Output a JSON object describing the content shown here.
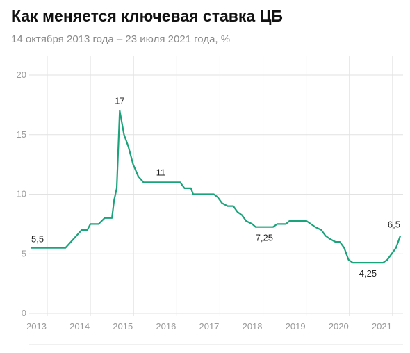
{
  "chart_data": {
    "type": "line",
    "title": "Как меняется ключевая ставка ЦБ",
    "subtitle": "14 октября 2013 года – 23 июля 2021 года, %",
    "xlabel": "",
    "ylabel": "",
    "ylim": [
      0,
      20
    ],
    "xlim": [
      2013.0,
      2021.55
    ],
    "grid": true,
    "y_ticks": [
      "0",
      "5",
      "10",
      "15",
      "20"
    ],
    "x_ticks": [
      {
        "value": 2013.0,
        "label": "2013"
      },
      {
        "value": 2014.0,
        "label": "2014"
      },
      {
        "value": 2015.0,
        "label": "2015"
      },
      {
        "value": 2016.0,
        "label": "2016"
      },
      {
        "value": 2017.0,
        "label": "2017"
      },
      {
        "value": 2018.0,
        "label": "2018"
      },
      {
        "value": 2019.0,
        "label": "2019"
      },
      {
        "value": 2020.0,
        "label": "2020"
      },
      {
        "value": 2021.0,
        "label": "2021"
      }
    ],
    "series": [
      {
        "color": "#1ba37a",
        "points": [
          [
            2013.0,
            5.5
          ],
          [
            2013.79,
            5.5
          ],
          [
            2014.17,
            7.0
          ],
          [
            2014.3,
            7.0
          ],
          [
            2014.37,
            7.5
          ],
          [
            2014.56,
            7.5
          ],
          [
            2014.7,
            8.0
          ],
          [
            2014.87,
            8.0
          ],
          [
            2014.92,
            9.5
          ],
          [
            2014.98,
            10.5
          ],
          [
            2015.05,
            17.0
          ],
          [
            2015.15,
            15.0
          ],
          [
            2015.25,
            14.0
          ],
          [
            2015.36,
            12.5
          ],
          [
            2015.48,
            11.5
          ],
          [
            2015.6,
            11.0
          ],
          [
            2016.45,
            11.0
          ],
          [
            2016.55,
            10.5
          ],
          [
            2016.7,
            10.5
          ],
          [
            2016.75,
            10.0
          ],
          [
            2017.23,
            10.0
          ],
          [
            2017.32,
            9.75
          ],
          [
            2017.42,
            9.25
          ],
          [
            2017.55,
            9.0
          ],
          [
            2017.68,
            9.0
          ],
          [
            2017.78,
            8.5
          ],
          [
            2017.88,
            8.25
          ],
          [
            2017.98,
            7.75
          ],
          [
            2018.12,
            7.5
          ],
          [
            2018.2,
            7.25
          ],
          [
            2018.6,
            7.25
          ],
          [
            2018.7,
            7.5
          ],
          [
            2018.9,
            7.5
          ],
          [
            2018.98,
            7.75
          ],
          [
            2019.38,
            7.75
          ],
          [
            2019.48,
            7.5
          ],
          [
            2019.58,
            7.25
          ],
          [
            2019.72,
            7.0
          ],
          [
            2019.82,
            6.5
          ],
          [
            2019.92,
            6.25
          ],
          [
            2020.05,
            6.0
          ],
          [
            2020.15,
            6.0
          ],
          [
            2020.25,
            5.5
          ],
          [
            2020.35,
            4.5
          ],
          [
            2020.45,
            4.25
          ],
          [
            2021.15,
            4.25
          ],
          [
            2021.25,
            4.5
          ],
          [
            2021.35,
            5.0
          ],
          [
            2021.45,
            5.5
          ],
          [
            2021.55,
            6.5
          ]
        ]
      }
    ],
    "annotations": [
      {
        "x": 2013.0,
        "y": 5.5,
        "label": "5,5"
      },
      {
        "x": 2015.05,
        "y": 17.0,
        "label": "17"
      },
      {
        "x": 2016.0,
        "y": 11.0,
        "label": "11"
      },
      {
        "x": 2018.4,
        "y": 7.25,
        "label": "7,25"
      },
      {
        "x": 2020.8,
        "y": 4.25,
        "label": "4,25"
      },
      {
        "x": 2021.55,
        "y": 6.5,
        "label": "6,5"
      }
    ]
  }
}
